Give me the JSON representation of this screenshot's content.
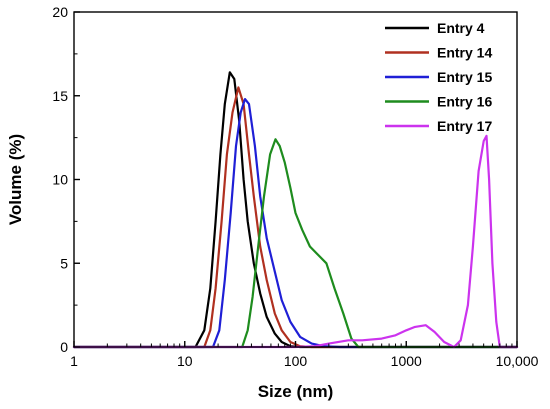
{
  "chart_data": {
    "type": "line",
    "xlabel": "Size (nm)",
    "ylabel": "Volume (%)",
    "xscale": "log",
    "xlim": [
      1,
      10000
    ],
    "ylim": [
      0,
      20
    ],
    "xticks": [
      1,
      10,
      100,
      1000,
      10000
    ],
    "xtick_labels": [
      "1",
      "10",
      "100",
      "1000",
      "10,000"
    ],
    "yticks": [
      0,
      5,
      10,
      15,
      20
    ],
    "ytick_labels": [
      "0",
      "5",
      "10",
      "15",
      "20"
    ],
    "grid": false,
    "legend_position": "top-right",
    "series": [
      {
        "name": "Entry 4",
        "color": "#000000",
        "x": [
          1,
          10,
          12.5,
          15,
          17,
          19,
          21,
          23,
          25.5,
          28,
          31,
          34,
          37,
          42,
          48,
          55,
          65,
          75,
          90,
          110,
          130,
          10000
        ],
        "y": [
          0,
          0,
          0,
          1.0,
          3.5,
          7.5,
          11.5,
          14.5,
          16.4,
          16.0,
          13.5,
          10.0,
          7.5,
          5.0,
          3.2,
          1.8,
          0.8,
          0.3,
          0.05,
          0,
          0,
          0
        ]
      },
      {
        "name": "Entry 14",
        "color": "#b03020",
        "x": [
          1,
          10,
          15,
          17,
          19,
          21.5,
          24,
          27,
          30.5,
          34,
          38,
          42,
          48,
          55,
          65,
          75,
          90,
          110,
          140,
          10000
        ],
        "y": [
          0,
          0,
          0,
          1.0,
          3.5,
          7.5,
          11.5,
          14.0,
          15.5,
          14.5,
          11.5,
          9.0,
          6.0,
          4.0,
          2.0,
          1.0,
          0.3,
          0.05,
          0,
          0
        ]
      },
      {
        "name": "Entry 15",
        "color": "#1f1fd6",
        "x": [
          1,
          10,
          18,
          20.5,
          23,
          26,
          29,
          32,
          35,
          38,
          43,
          48,
          55,
          65,
          75,
          90,
          110,
          140,
          180,
          250,
          10000
        ],
        "y": [
          0,
          0,
          0,
          1.0,
          4.0,
          8.0,
          12.0,
          14.0,
          14.8,
          14.5,
          12.0,
          9.0,
          6.5,
          4.5,
          2.8,
          1.5,
          0.6,
          0.2,
          0.05,
          0,
          0
        ]
      },
      {
        "name": "Entry 16",
        "color": "#1e8c1e",
        "x": [
          1,
          10,
          33,
          37,
          41,
          46,
          52,
          59,
          66,
          72,
          80,
          90,
          100,
          115,
          135,
          160,
          190,
          225,
          270,
          320,
          370,
          10000
        ],
        "y": [
          0,
          0,
          0,
          1.0,
          3.0,
          6.0,
          9.0,
          11.5,
          12.4,
          12.0,
          11.0,
          9.5,
          8.0,
          7.0,
          6.0,
          5.5,
          5.0,
          3.5,
          2.0,
          0.5,
          0,
          0
        ]
      },
      {
        "name": "Entry 17",
        "color": "#cc33ee",
        "x": [
          1,
          100,
          150,
          200,
          300,
          400,
          600,
          800,
          1000,
          1200,
          1500,
          1800,
          2200,
          2700,
          3100,
          3600,
          4000,
          4500,
          5000,
          5300,
          5600,
          6000,
          6500,
          7000,
          10000
        ],
        "y": [
          0,
          0,
          0.05,
          0.2,
          0.4,
          0.4,
          0.5,
          0.7,
          1.0,
          1.2,
          1.3,
          0.9,
          0.3,
          0,
          0.4,
          2.5,
          6.0,
          10.5,
          12.3,
          12.6,
          10.0,
          5.0,
          1.5,
          0,
          0
        ]
      }
    ]
  }
}
